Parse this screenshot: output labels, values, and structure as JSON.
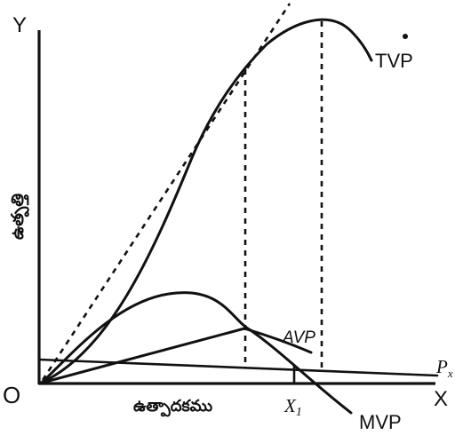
{
  "axes": {
    "y_letter": "Y",
    "x_letter": "X",
    "origin": "O",
    "y_title": "ఉత్పత్తి",
    "x_title": "ఉత్పాదకము"
  },
  "curves": {
    "tvp": "TVP",
    "avp": "AVP",
    "mvp": "MVP",
    "price": "P",
    "price_sub": "x"
  },
  "points": {
    "x1": "X",
    "x1_sub": "1"
  }
}
